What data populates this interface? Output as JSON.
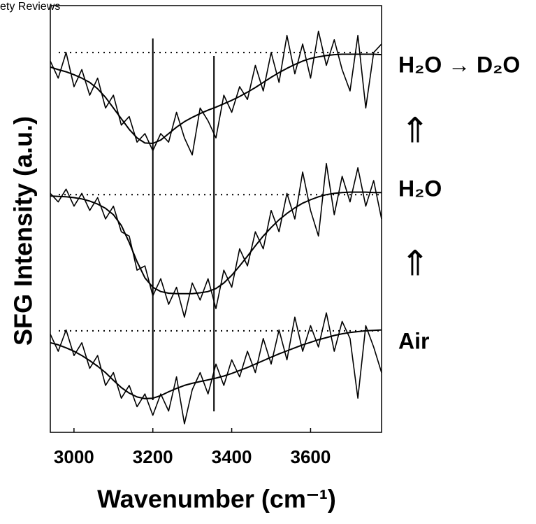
{
  "chart_data": {
    "type": "line",
    "source": "ety Reviews",
    "xlabel": "Wavenumber (cm⁻¹)",
    "ylabel": "SFG Intensity (a.u.)",
    "annotations": [
      "H₂O → D₂O",
      "⇑",
      "H₂O",
      "⇑",
      "Air"
    ],
    "x": [
      2940,
      2960,
      2980,
      3000,
      3020,
      3040,
      3060,
      3080,
      3100,
      3120,
      3140,
      3160,
      3180,
      3200,
      3220,
      3240,
      3260,
      3280,
      3300,
      3320,
      3340,
      3360,
      3380,
      3400,
      3420,
      3440,
      3460,
      3480,
      3500,
      3520,
      3540,
      3560,
      3580,
      3600,
      3620,
      3640,
      3660,
      3680,
      3700,
      3720,
      3740,
      3760,
      3780
    ],
    "series": [
      {
        "color": "#000000",
        "values": [
          8.7,
          8.3,
          8.9,
          8.1,
          8.5,
          7.9,
          8.3,
          7.6,
          7.9,
          7.2,
          7.4,
          6.8,
          7.0,
          6.6,
          7.0,
          6.8,
          7.5,
          6.9,
          6.5,
          7.6,
          7.3,
          6.9,
          7.9,
          7.5,
          8.1,
          7.8,
          8.6,
          8.0,
          8.9,
          8.2,
          9.3,
          8.4,
          9.1,
          8.3,
          9.4,
          8.6,
          9.2,
          8.5,
          8.0,
          9.3,
          7.6,
          8.9,
          9.1
        ]
      },
      {
        "color": "#000000",
        "values": [
          8.56,
          8.5,
          8.45,
          8.38,
          8.3,
          8.2,
          8.05,
          7.85,
          7.6,
          7.35,
          7.1,
          6.9,
          6.78,
          6.77,
          6.85,
          7.0,
          7.15,
          7.28,
          7.38,
          7.47,
          7.55,
          7.62,
          7.7,
          7.78,
          7.87,
          7.97,
          8.08,
          8.2,
          8.32,
          8.43,
          8.53,
          8.62,
          8.7,
          8.76,
          8.8,
          8.83,
          8.85,
          8.86,
          8.86,
          8.86,
          8.86,
          8.86,
          8.85
        ]
      },
      {
        "color": "#000000",
        "values": [
          5.6,
          5.4,
          5.7,
          5.3,
          5.6,
          5.2,
          5.5,
          5.0,
          5.3,
          4.7,
          4.6,
          3.8,
          3.9,
          3.2,
          3.6,
          3.0,
          3.4,
          2.7,
          3.5,
          3.1,
          3.6,
          2.9,
          3.8,
          3.4,
          4.3,
          3.9,
          4.7,
          4.3,
          5.2,
          4.7,
          5.6,
          5.0,
          6.1,
          5.2,
          4.6,
          6.3,
          5.1,
          6.0,
          5.4,
          6.2,
          5.3,
          5.9,
          5.0
        ]
      },
      {
        "color": "#000000",
        "values": [
          5.54,
          5.53,
          5.52,
          5.5,
          5.47,
          5.42,
          5.35,
          5.25,
          5.1,
          4.85,
          4.45,
          4.0,
          3.62,
          3.4,
          3.3,
          3.26,
          3.25,
          3.25,
          3.25,
          3.27,
          3.3,
          3.37,
          3.5,
          3.68,
          3.9,
          4.13,
          4.37,
          4.6,
          4.8,
          4.98,
          5.13,
          5.26,
          5.37,
          5.45,
          5.52,
          5.57,
          5.6,
          5.62,
          5.63,
          5.63,
          5.63,
          5.62,
          5.62
        ]
      },
      {
        "color": "#000000",
        "values": [
          2.3,
          1.9,
          2.4,
          1.8,
          2.1,
          1.5,
          1.8,
          1.1,
          1.4,
          0.8,
          1.1,
          0.6,
          0.9,
          0.4,
          0.9,
          0.5,
          1.3,
          0.2,
          1.0,
          1.4,
          0.9,
          1.6,
          1.1,
          1.7,
          1.3,
          1.9,
          1.4,
          2.2,
          1.6,
          2.4,
          1.7,
          2.7,
          1.9,
          2.5,
          2.0,
          2.8,
          1.9,
          2.6,
          2.2,
          0.8,
          2.5,
          2.0,
          1.4
        ]
      },
      {
        "color": "#000000",
        "values": [
          2.1,
          2.05,
          1.98,
          1.9,
          1.8,
          1.68,
          1.55,
          1.4,
          1.22,
          1.05,
          0.92,
          0.83,
          0.79,
          0.8,
          0.86,
          0.95,
          1.03,
          1.1,
          1.15,
          1.19,
          1.23,
          1.27,
          1.32,
          1.38,
          1.45,
          1.52,
          1.6,
          1.68,
          1.76,
          1.84,
          1.91,
          1.98,
          2.05,
          2.11,
          2.17,
          2.22,
          2.27,
          2.31,
          2.34,
          2.36,
          2.38,
          2.39,
          2.4
        ]
      }
    ],
    "baselines": [
      8.9,
      5.57,
      2.38
    ],
    "vlines": [
      3200,
      3355
    ],
    "xlim": [
      2940,
      3780
    ],
    "ylim": [
      0,
      10
    ],
    "xticks": [
      3000,
      3200,
      3400,
      3600
    ]
  }
}
